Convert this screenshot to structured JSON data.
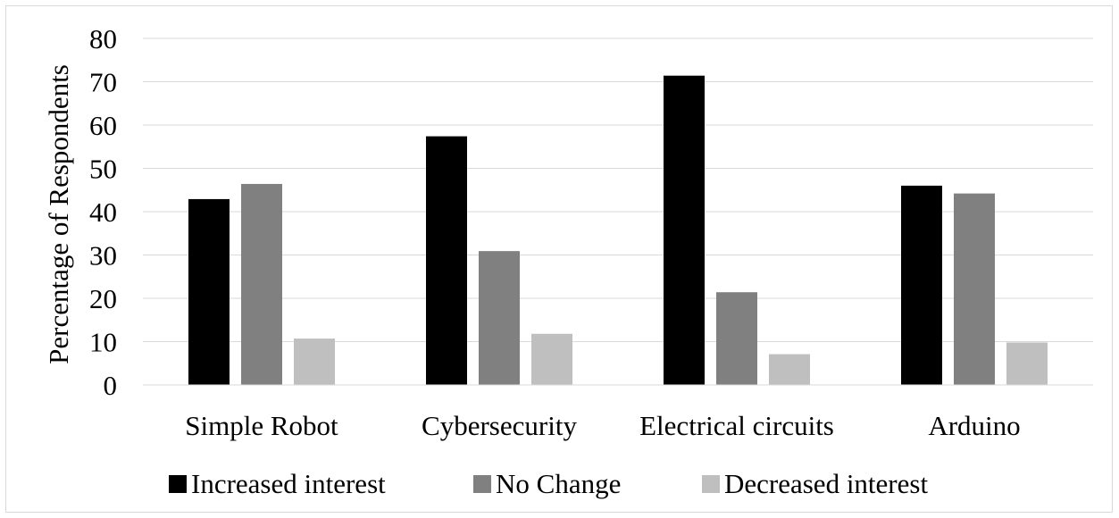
{
  "chart_data": {
    "type": "bar",
    "title": "",
    "xlabel": "",
    "ylabel": "Percentage of Respondents",
    "ylim": [
      0,
      80
    ],
    "yticks": [
      "0",
      "10",
      "20",
      "30",
      "40",
      "50",
      "60",
      "70",
      "80"
    ],
    "grid": true,
    "legend_position": "bottom",
    "categories": [
      "Simple Robot",
      "Cybersecurity",
      "Electrical circuits",
      "Arduino"
    ],
    "series": [
      {
        "name": "Increased interest",
        "color": "#000000",
        "values": [
          42.9,
          57.4,
          71.4,
          46.0
        ]
      },
      {
        "name": "No Change",
        "color": "#808080",
        "values": [
          46.4,
          30.9,
          21.4,
          44.2
        ]
      },
      {
        "name": "Decreased interest",
        "color": "#bfbfbf",
        "values": [
          10.7,
          11.8,
          7.1,
          9.8
        ]
      }
    ]
  }
}
